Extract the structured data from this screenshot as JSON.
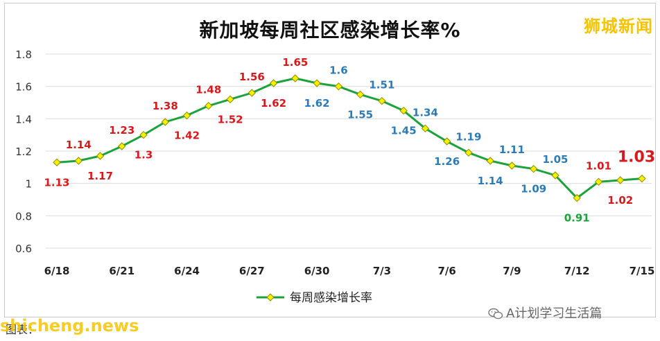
{
  "page": {
    "title": "新加坡每周社区感染增长率%",
    "brand": "狮城新闻",
    "wechat_account": "A计划学习生活篇",
    "footer_label": "图表：",
    "site": "shicheng.news"
  },
  "colors": {
    "line": "#1aa33b",
    "marker_fill": "#f5f000",
    "marker_stroke": "#8a8a00",
    "label_red": "#d7191c",
    "label_blue": "#2c7bb6",
    "label_green": "#1aa33b",
    "grid": "#dcdcdc",
    "brand": "#f5c400"
  },
  "chart_data": {
    "type": "line",
    "title": "新加坡每周社区感染增长率%",
    "x": [
      "6/18",
      "6/19",
      "6/20",
      "6/21",
      "6/22",
      "6/23",
      "6/24",
      "6/25",
      "6/26",
      "6/27",
      "6/28",
      "6/29",
      "6/30",
      "7/1",
      "7/2",
      "7/3",
      "7/4",
      "7/5",
      "7/6",
      "7/7",
      "7/8",
      "7/9",
      "7/10",
      "7/11",
      "7/12",
      "7/13",
      "7/14",
      "7/15"
    ],
    "x_tick_labels": [
      "6/18",
      "6/21",
      "6/24",
      "6/27",
      "6/30",
      "7/3",
      "7/6",
      "7/9",
      "7/12",
      "7/15"
    ],
    "series": [
      {
        "name": "每周感染增长率",
        "values": [
          1.13,
          1.14,
          1.17,
          1.23,
          1.3,
          1.38,
          1.42,
          1.48,
          1.52,
          1.56,
          1.62,
          1.65,
          1.62,
          1.6,
          1.55,
          1.51,
          1.45,
          1.34,
          1.26,
          1.19,
          1.14,
          1.11,
          1.09,
          1.05,
          0.91,
          1.01,
          1.02,
          1.03
        ],
        "labels": [
          "1.13",
          "1.14",
          "1.17",
          "1.23",
          "1.3",
          "1.38",
          "1.42",
          "1.48",
          "1.52",
          "1.56",
          "1.62",
          "1.65",
          "1.62",
          "1.6",
          "1.55",
          "1.51",
          "1.45",
          "1.34",
          "1.26",
          "1.19",
          "1.14",
          "1.11",
          "1.09",
          "1.05",
          "0.91",
          "1.01",
          "1.02",
          "1.03"
        ],
        "label_colors": [
          "red",
          "red",
          "red",
          "red",
          "red",
          "red",
          "red",
          "red",
          "red",
          "red",
          "red",
          "red",
          "blue",
          "blue",
          "blue",
          "blue",
          "blue",
          "blue",
          "blue",
          "blue",
          "blue",
          "blue",
          "blue",
          "blue",
          "green",
          "red",
          "red",
          "red"
        ],
        "label_positions": [
          "below",
          "above",
          "below",
          "above",
          "below",
          "above",
          "below",
          "above",
          "below",
          "above",
          "below",
          "above",
          "below",
          "above",
          "below",
          "above",
          "below",
          "above",
          "below",
          "above",
          "below",
          "above",
          "below",
          "above",
          "below",
          "above",
          "below",
          "above"
        ],
        "highlight_last": true
      }
    ],
    "y_ticks": [
      "0.6",
      "0.8",
      "1",
      "1.2",
      "1.4",
      "1.6",
      "1.8"
    ],
    "ylim": [
      0.6,
      1.8
    ],
    "grid": true,
    "legend": "bottom-center"
  }
}
